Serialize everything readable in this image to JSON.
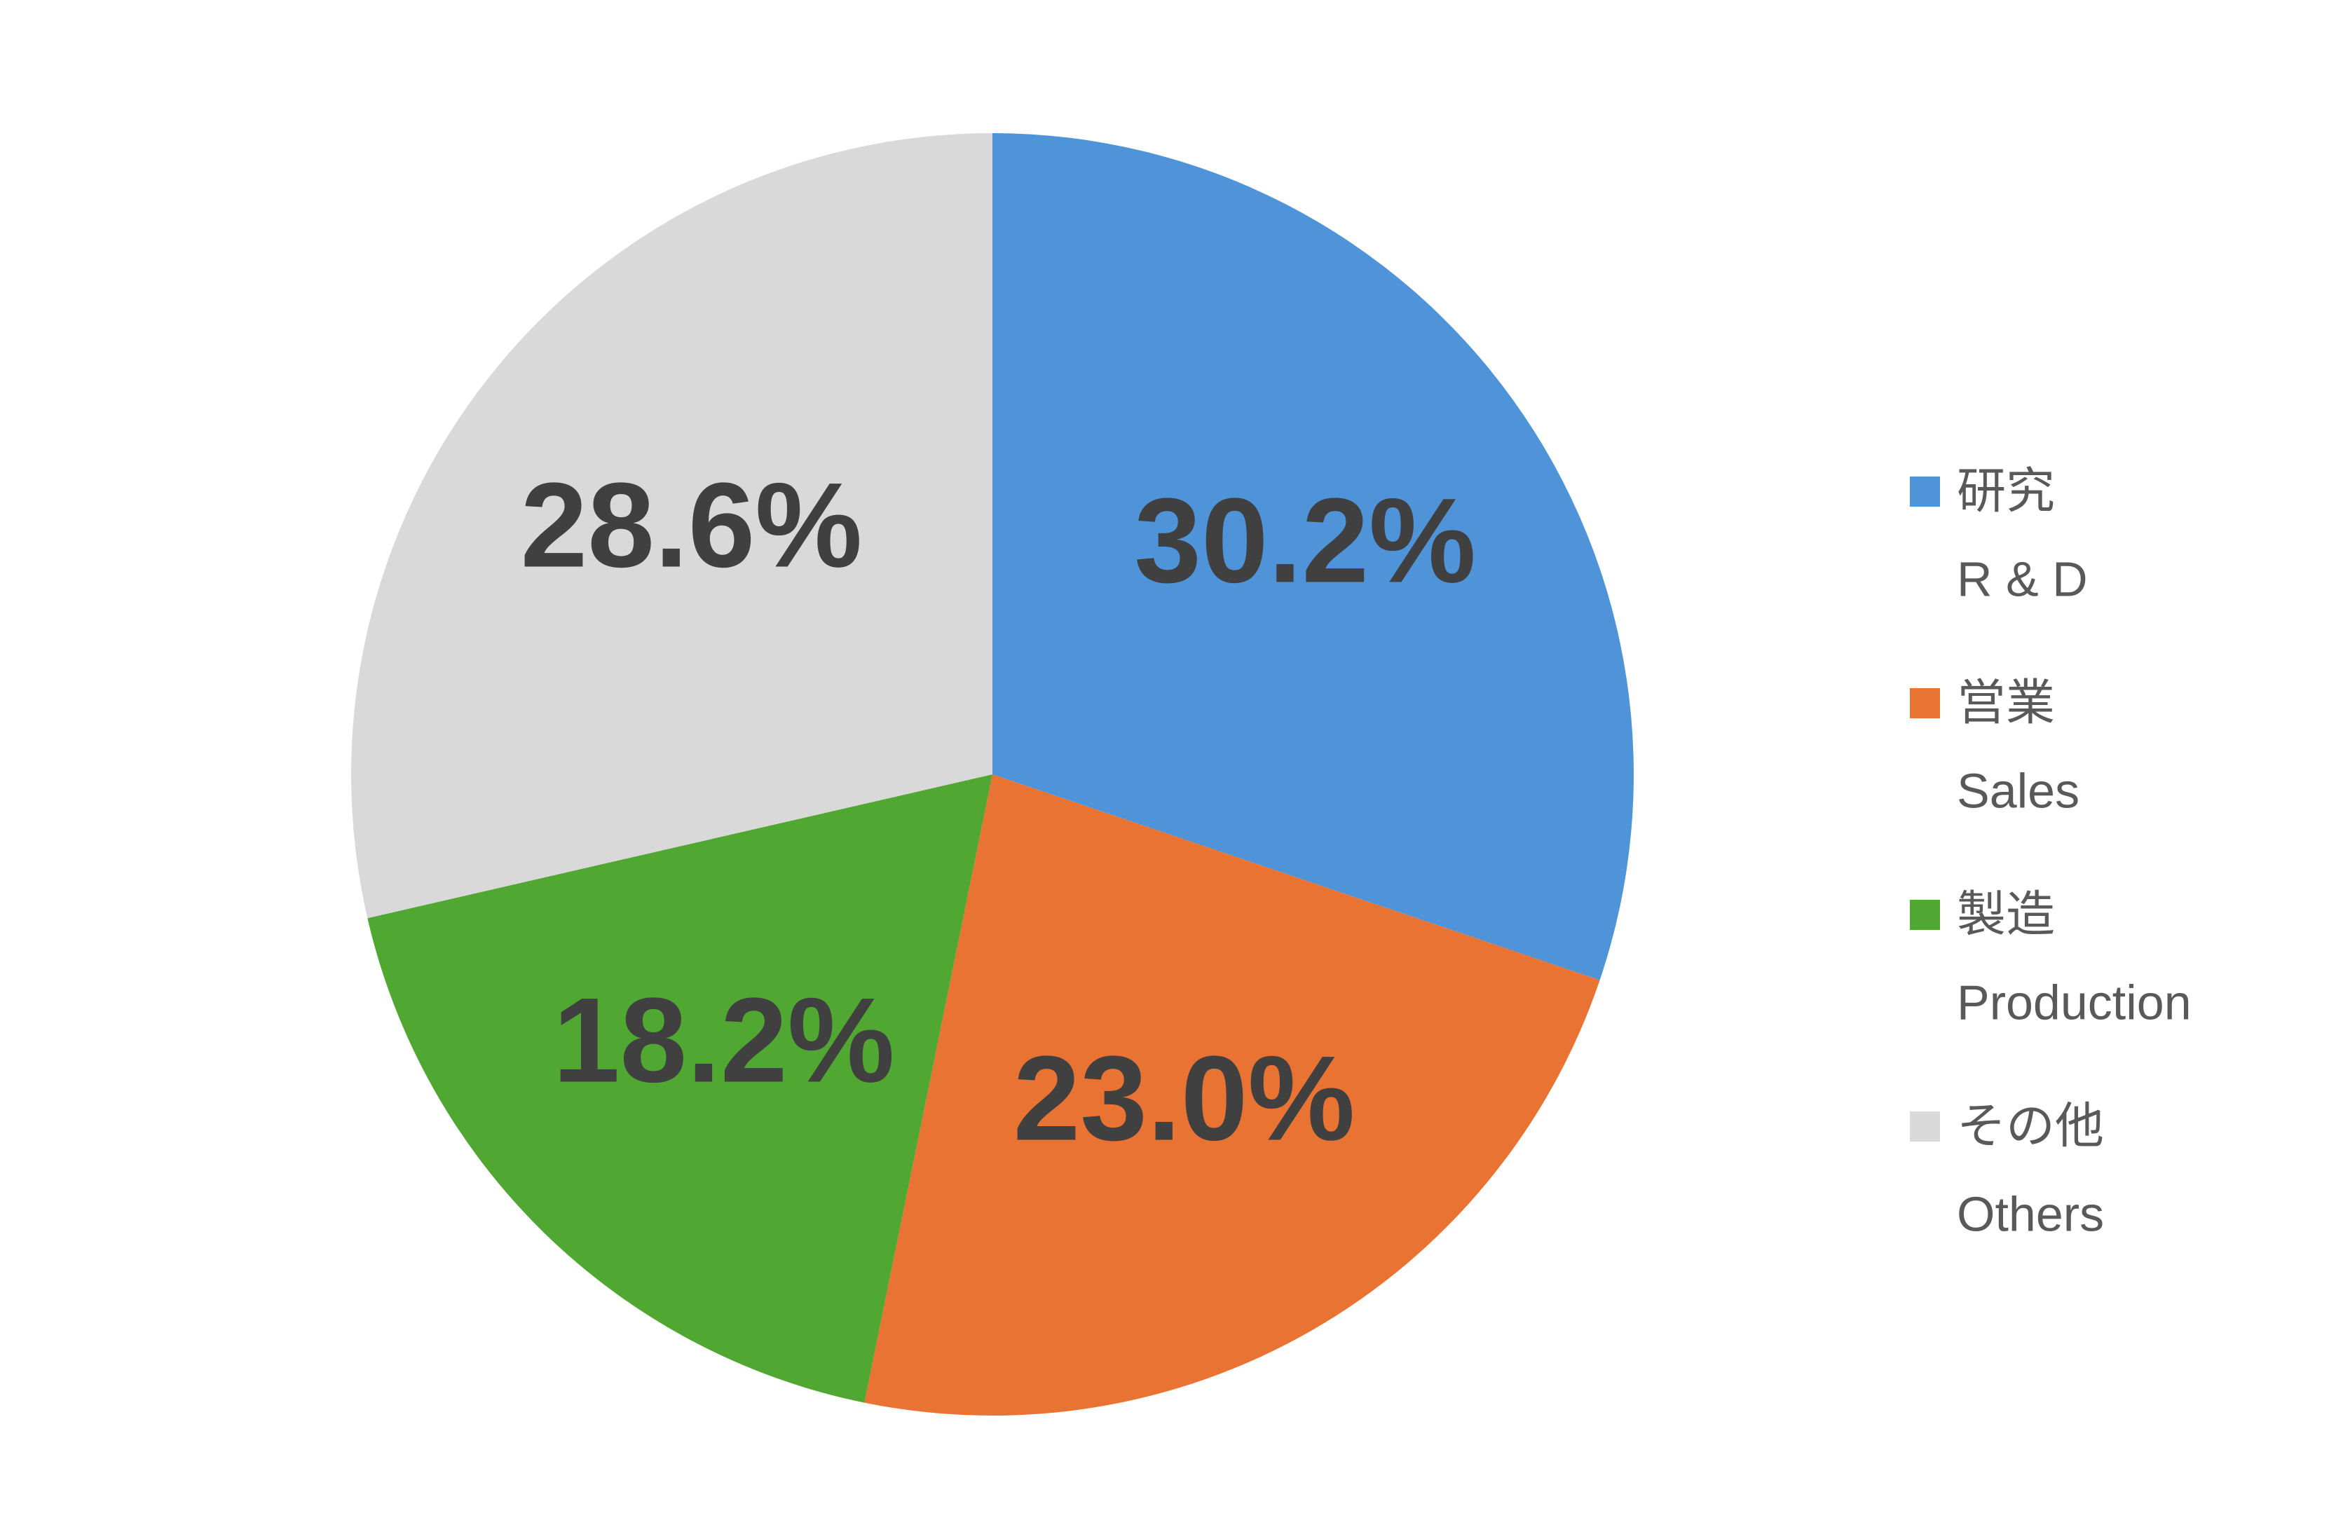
{
  "chart_data": {
    "type": "pie",
    "categories": [
      "研究",
      "営業",
      "製造",
      "その他"
    ],
    "subcategories": [
      "R & D",
      "Sales",
      "Production",
      "Others"
    ],
    "values": [
      30.2,
      23.0,
      18.2,
      28.6
    ],
    "value_labels": [
      "30.2%",
      "23.0%",
      "18.2%",
      "28.6%"
    ],
    "colors": [
      "#4f94d9",
      "#e97332",
      "#50a731",
      "#d9d9d9"
    ],
    "legend": "right"
  }
}
